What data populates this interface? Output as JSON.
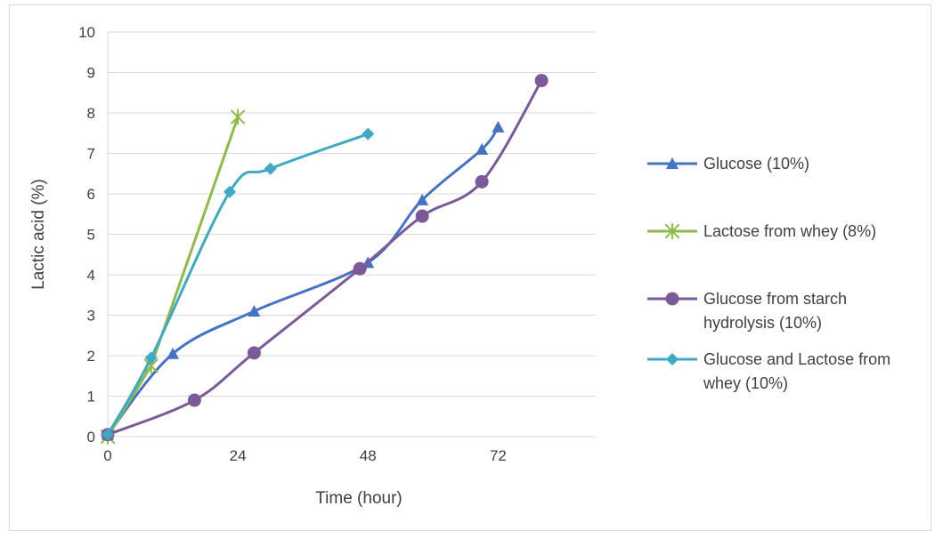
{
  "chart_data": {
    "type": "line",
    "title": "",
    "xlabel": "Time (hour)",
    "ylabel": "Lactic acid (%)",
    "xlim": [
      0,
      90
    ],
    "ylim": [
      0,
      10
    ],
    "xticks": [
      0,
      24,
      48,
      72
    ],
    "xtick_labels": [
      "0",
      "24",
      "48",
      "72"
    ],
    "yticks": [
      0,
      1,
      2,
      3,
      4,
      5,
      6,
      7,
      8,
      9,
      10
    ],
    "ytick_labels": [
      "0",
      "1",
      "2",
      "3",
      "4",
      "5",
      "6",
      "7",
      "8",
      "9",
      "10"
    ],
    "grid": "horizontal",
    "legend_position": "right",
    "smooth": true,
    "series": [
      {
        "name": "Glucose (10%)",
        "color": "#4472c4",
        "marker": "triangle",
        "x": [
          0,
          12,
          27,
          48,
          58,
          69,
          72
        ],
        "y": [
          0.05,
          2.05,
          3.1,
          4.3,
          5.85,
          7.1,
          7.65
        ]
      },
      {
        "name": "Lactose from whey (8%)",
        "color": "#8dbb45",
        "marker": "star",
        "x": [
          0,
          8,
          24
        ],
        "y": [
          0.0,
          1.75,
          7.9
        ]
      },
      {
        "name": "Glucose from starch hydrolysis (10%)",
        "color": "#7a5a98",
        "marker": "circle",
        "x": [
          0,
          16,
          27,
          46.5,
          58,
          69,
          80
        ],
        "y": [
          0.05,
          0.9,
          2.07,
          4.15,
          5.45,
          6.3,
          8.8
        ]
      },
      {
        "name": "Glucose and Lactose from whey (10%)",
        "color": "#3fa9c4",
        "marker": "diamond",
        "x": [
          0,
          8,
          22.5,
          30,
          48
        ],
        "y": [
          0.05,
          1.95,
          6.05,
          6.62,
          7.48
        ]
      }
    ]
  }
}
